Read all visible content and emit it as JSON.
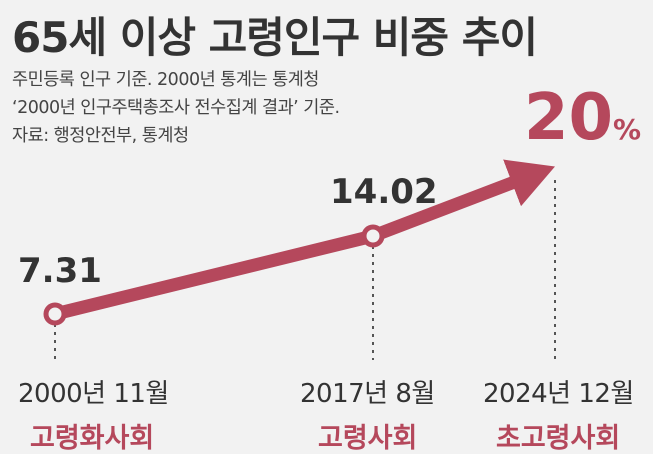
{
  "title": "65세 이상 고령인구 비중 추이",
  "notes": [
    "주민등록 인구 기준. 2000년 통계는 통계청",
    "‘2000년 인구주택총조사 전수집계 결과’ 기준.",
    "자료: 행정안전부, 통계청"
  ],
  "colors": {
    "accent": "#b5485c",
    "text": "#333333",
    "background": "#f2f2f2"
  },
  "chart_data": {
    "type": "line",
    "categories": [
      "2000년 11월",
      "2017년 8월",
      "2024년 12월"
    ],
    "values": [
      7.31,
      14.02,
      20
    ],
    "value_labels": [
      "7.31",
      "14.02",
      "20"
    ],
    "final_unit": "%",
    "stage_labels": [
      "고령화사회",
      "고령사회",
      "초고령사회"
    ],
    "ylim": [
      0,
      22
    ],
    "grid": false,
    "legend": "none"
  }
}
